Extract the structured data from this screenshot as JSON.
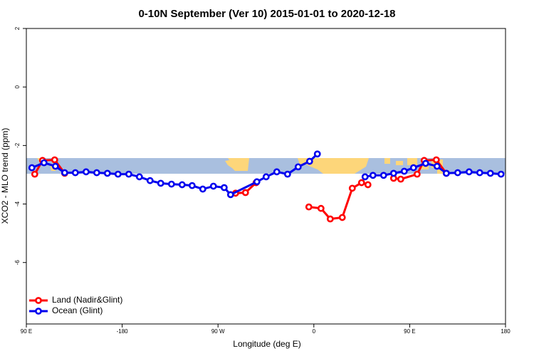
{
  "chart_data": {
    "type": "line",
    "title": "0-10N September (Ver 10)   2015-01-01 to 2020-12-18",
    "x_label": "Longitude (deg E)",
    "y_label": "XCO2 - MLO trend (ppm)",
    "xlim": [
      -270,
      180
    ],
    "xticks": [
      {
        "value": -270,
        "label": "90 E"
      },
      -180,
      {
        "value": -90,
        "label": "90 W"
      },
      0,
      {
        "value": 90,
        "label": "90 E"
      },
      180
    ],
    "ylim": [
      -8.1,
      2
    ],
    "yticks": [
      -6,
      -4,
      -2,
      0,
      2
    ],
    "legend": "bottom-left",
    "series": [
      {
        "name": "Land (Nadir&Glint)",
        "color": "#ff0000",
        "x": [
          -262.1,
          -254.8,
          -243.4,
          -234.0,
          null,
          -73.5,
          -64.2,
          -54.2,
          null,
          -4.7,
          6.7,
          15.4,
          26.7,
          36.1,
          44.8,
          50.8,
          null,
          74.9,
          81.6,
          97.0,
          103.6,
          115.0,
          124.4
        ],
        "values": [
          -2.98,
          -2.51,
          -2.49,
          -2.95,
          null,
          -3.63,
          -3.61,
          -3.27,
          null,
          -4.1,
          -4.15,
          -4.51,
          -4.46,
          -3.46,
          -3.27,
          -3.34,
          null,
          -3.12,
          -3.15,
          -2.98,
          -2.51,
          -2.49,
          -2.95
        ]
      },
      {
        "name": "Ocean (Glint)",
        "color": "#0000ee",
        "x": [
          -264.8,
          -253.4,
          -242.7,
          -234.0,
          -224.0,
          -213.9,
          -203.9,
          -193.9,
          -183.9,
          -173.8,
          -163.8,
          -153.8,
          -143.8,
          -133.7,
          -123.7,
          -114.3,
          -104.3,
          -94.3,
          -84.2,
          -78.2,
          -53.5,
          -44.8,
          -34.8,
          -24.7,
          -14.7,
          -4.0,
          3.3,
          null,
          48.1,
          55.5,
          65.5,
          74.9,
          84.9,
          93.6,
          105.0,
          115.7,
          124.4,
          135.1,
          145.8,
          155.8,
          165.8,
          175.8
        ],
        "values": [
          -2.76,
          -2.59,
          -2.71,
          -2.93,
          -2.93,
          -2.9,
          -2.93,
          -2.95,
          -2.98,
          -2.98,
          -3.07,
          -3.2,
          -3.29,
          -3.32,
          -3.34,
          -3.37,
          -3.49,
          -3.39,
          -3.44,
          -3.68,
          -3.24,
          -3.07,
          -2.9,
          -2.98,
          -2.73,
          -2.54,
          -2.29,
          null,
          -3.07,
          -3.02,
          -3.02,
          -2.95,
          -2.88,
          -2.76,
          -2.61,
          -2.71,
          -2.95,
          -2.93,
          -2.9,
          -2.93,
          -2.95,
          -2.98
        ]
      }
    ]
  }
}
